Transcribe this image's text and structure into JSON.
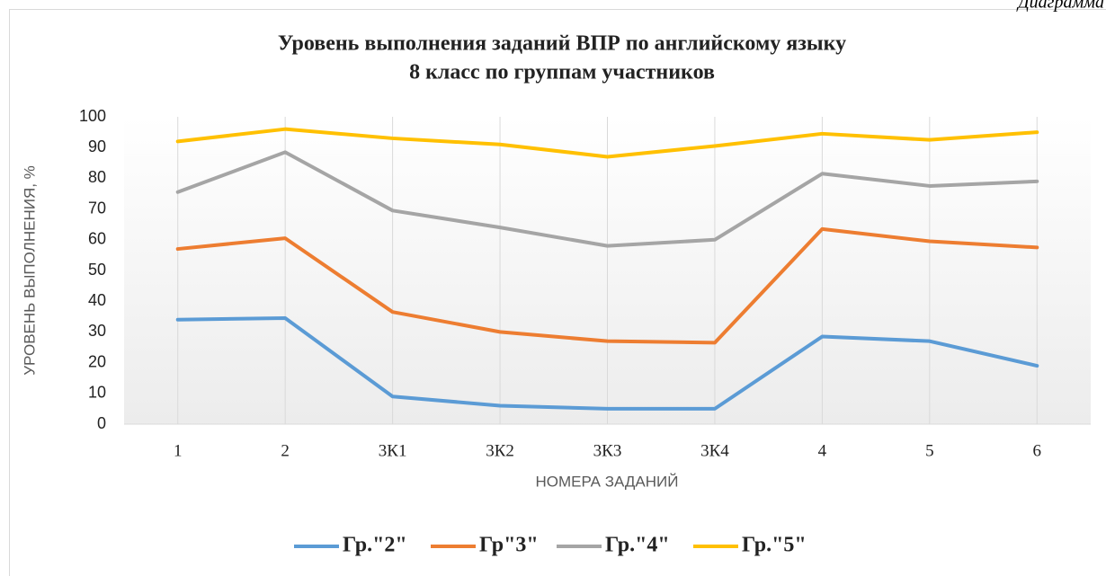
{
  "caption": "Диаграмма",
  "chart_data": {
    "type": "line",
    "title": [
      "Уровень выполнения заданий ВПР по английскому языку",
      "8 класс по группам участников"
    ],
    "y_label": "УРОВЕНЬ ВЫПОЛНЕНИЯ, %",
    "x_label": "НОМЕРА ЗАДАНИЙ",
    "categories": [
      "1",
      "2",
      "3К1",
      "3К2",
      "3К3",
      "3К4",
      "4",
      "5",
      "6"
    ],
    "ylim": [
      0,
      100
    ],
    "yticks": [
      0,
      10,
      20,
      30,
      40,
      50,
      60,
      70,
      80,
      90,
      100
    ],
    "grid": true,
    "legend": "bottom",
    "series": [
      {
        "name": "Гр.\"2\"",
        "color": "#5b9bd5",
        "values": [
          34,
          34.5,
          9,
          6,
          5,
          5,
          28.5,
          27,
          19
        ]
      },
      {
        "name": "Гр\"3\"",
        "color": "#ed7d31",
        "values": [
          57,
          60.5,
          36.5,
          30,
          27,
          26.5,
          63.5,
          59.5,
          57.5
        ]
      },
      {
        "name": "Гр.\"4\"",
        "color": "#a5a5a5",
        "values": [
          75.5,
          88.5,
          69.5,
          64,
          58,
          60,
          81.5,
          77.5,
          79
        ]
      },
      {
        "name": "Гр.\"5\"",
        "color": "#ffc000",
        "values": [
          92,
          96,
          93,
          91,
          87,
          90.5,
          94.5,
          92.5,
          95
        ]
      }
    ]
  }
}
